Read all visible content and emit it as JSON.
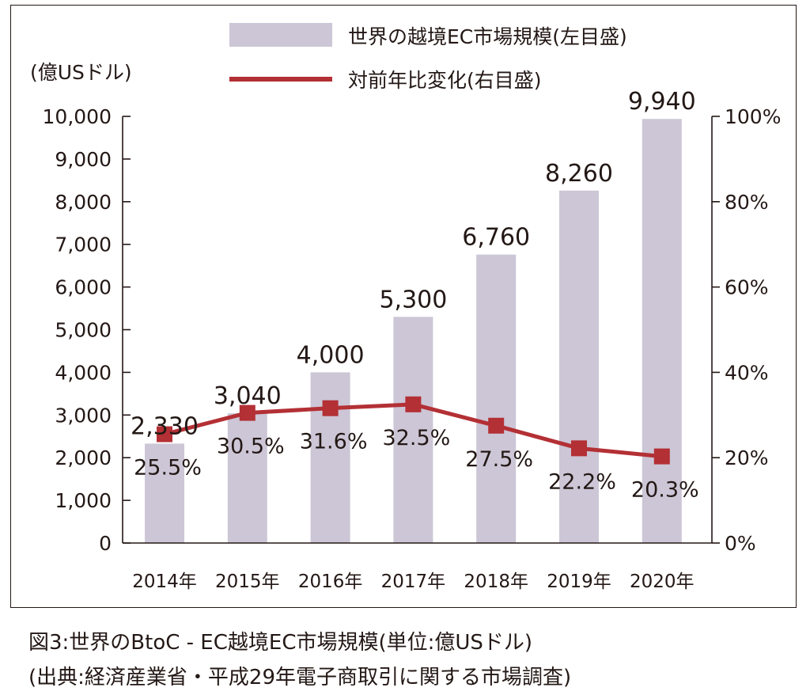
{
  "chart_data": {
    "type": "bar+line",
    "categories": [
      "2014年",
      "2015年",
      "2016年",
      "2017年",
      "2018年",
      "2019年",
      "2020年"
    ],
    "series": [
      {
        "name": "世界の越境EC市場規模(左目盛)",
        "type": "bar",
        "axis": "left",
        "values": [
          2330,
          3040,
          4000,
          5300,
          6760,
          8260,
          9940
        ],
        "labels": [
          "2,330",
          "3,040",
          "4,000",
          "5,300",
          "6,760",
          "8,260",
          "9,940"
        ]
      },
      {
        "name": "対前年比変化(右目盛)",
        "type": "line",
        "axis": "right",
        "values": [
          25.5,
          30.5,
          31.6,
          32.5,
          27.5,
          22.2,
          20.3
        ],
        "labels": [
          "25.5%",
          "30.5%",
          "31.6%",
          "32.5%",
          "27.5%",
          "22.2%",
          "20.3%"
        ]
      }
    ],
    "left_axis": {
      "unit_label": "(億USドル)",
      "ylim": [
        0,
        10000
      ],
      "ticks": [
        "0",
        "1,000",
        "2,000",
        "3,000",
        "4,000",
        "5,000",
        "6,000",
        "7,000",
        "8,000",
        "9,000",
        "10,000"
      ]
    },
    "right_axis": {
      "ylim": [
        0,
        100
      ],
      "ticks": [
        "0%",
        "20%",
        "40%",
        "60%",
        "80%",
        "100%"
      ]
    },
    "grid": false,
    "legend_position": "top",
    "colors": {
      "bar": "#ccc6d6",
      "line": "#b33035",
      "marker": "#b33035",
      "axis": "#231815"
    }
  },
  "caption": {
    "line1": "図3:世界のBtoC - EC越境EC市場規模(単位:億USドル)",
    "line2": "(出典:経済産業省・平成29年電子商取引に関する市場調査)"
  }
}
